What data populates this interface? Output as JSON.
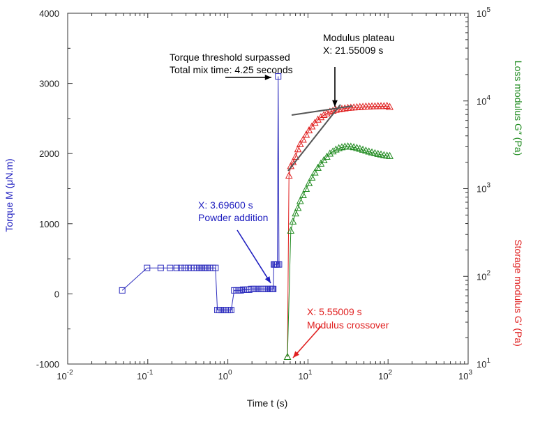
{
  "chart_data": {
    "type": "scatter",
    "x_scale": "log",
    "xlim": [
      0.01,
      1000
    ],
    "xlabel": "Time t (s)",
    "x_ticks": [
      {
        "base": "10",
        "exp": "-2",
        "value": 0.01
      },
      {
        "base": "10",
        "exp": "-1",
        "value": 0.1
      },
      {
        "base": "10",
        "exp": "0",
        "value": 1
      },
      {
        "base": "10",
        "exp": "1",
        "value": 10
      },
      {
        "base": "10",
        "exp": "2",
        "value": 100
      },
      {
        "base": "10",
        "exp": "3",
        "value": 1000
      }
    ],
    "y_left": {
      "label": "Torque M (μN.m)",
      "label_color": "#2020c0",
      "scale": "linear",
      "lim": [
        -1000,
        4000
      ],
      "ticks": [
        "-1000",
        "0",
        "1000",
        "2000",
        "3000",
        "4000"
      ]
    },
    "y_right": {
      "scale": "log",
      "lim": [
        10,
        100000
      ],
      "ticks": [
        {
          "base": "10",
          "exp": "1",
          "value": 10
        },
        {
          "base": "10",
          "exp": "2",
          "value": 100
        },
        {
          "base": "10",
          "exp": "3",
          "value": 1000
        },
        {
          "base": "10",
          "exp": "4",
          "value": 10000
        },
        {
          "base": "10",
          "exp": "5",
          "value": 100000
        }
      ],
      "label_loss": "Loss modulus G″ (Pa)",
      "label_storage": "Storage modulus G′ (Pa)"
    },
    "series": [
      {
        "key": "torque",
        "axis": "left",
        "color": "#2d2dbe",
        "marker": "square",
        "x": [
          0.048,
          0.098,
          0.145,
          0.19,
          0.23,
          0.26,
          0.29,
          0.32,
          0.35,
          0.38,
          0.41,
          0.44,
          0.47,
          0.5,
          0.53,
          0.56,
          0.6,
          0.65,
          0.7,
          0.74,
          0.78,
          0.82,
          0.86,
          0.9,
          0.95,
          1.0,
          1.05,
          1.1,
          1.2,
          1.28,
          1.36,
          1.45,
          1.55,
          1.65,
          1.75,
          1.85,
          1.95,
          2.05,
          2.15,
          2.3,
          2.45,
          2.6,
          2.75,
          2.9,
          3.05,
          3.2,
          3.35,
          3.5,
          3.6,
          3.69,
          3.75,
          3.85,
          3.95,
          4.05,
          4.15,
          4.25,
          4.35
        ],
        "y": [
          50,
          370,
          370,
          370,
          370,
          370,
          370,
          370,
          370,
          370,
          370,
          370,
          370,
          370,
          370,
          370,
          370,
          370,
          370,
          -230,
          -230,
          -230,
          -230,
          -230,
          -230,
          -230,
          -230,
          -230,
          50,
          50,
          50,
          50,
          60,
          60,
          60,
          60,
          70,
          70,
          70,
          70,
          70,
          70,
          70,
          70,
          70,
          70,
          70,
          70,
          70,
          70,
          420,
          420,
          420,
          420,
          420,
          3100,
          420
        ]
      },
      {
        "key": "storage_modulus",
        "axis": "right",
        "color": "#e02020",
        "marker": "triangle",
        "x": [
          5.55,
          5.8,
          6.1,
          6.5,
          7,
          7.5,
          8,
          8.7,
          9.5,
          10.3,
          11.2,
          12.2,
          13.3,
          14.5,
          15.8,
          17.2,
          18.8,
          20.5,
          22.3,
          24.3,
          26.5,
          28.9,
          31.5,
          34.3,
          37.4,
          40.8,
          44.5,
          48.5,
          52.9,
          57.7,
          62.9,
          68.6,
          74.8,
          81.6,
          89,
          97,
          105
        ],
        "y": [
          12,
          1400,
          1800,
          2000,
          2300,
          2800,
          3200,
          3600,
          4100,
          4600,
          5100,
          5600,
          6100,
          6500,
          6900,
          7200,
          7500,
          7700,
          7900,
          8000,
          8100,
          8200,
          8300,
          8350,
          8400,
          8450,
          8500,
          8550,
          8600,
          8600,
          8650,
          8650,
          8700,
          8700,
          8700,
          8750,
          8500
        ]
      },
      {
        "key": "loss_modulus",
        "axis": "right",
        "color": "#1e8a1e",
        "marker": "triangle",
        "x": [
          5.55,
          6.1,
          6.5,
          7,
          7.5,
          8,
          8.7,
          9.5,
          10.3,
          11.2,
          12.2,
          13.3,
          14.5,
          15.8,
          17.2,
          18.8,
          20.5,
          22.3,
          24.3,
          26.5,
          28.9,
          31.5,
          34.3,
          37.4,
          40.8,
          44.5,
          48.5,
          52.9,
          57.7,
          62.9,
          68.6,
          74.8,
          81.6,
          89,
          97,
          105
        ],
        "y": [
          12,
          330,
          420,
          520,
          600,
          720,
          840,
          990,
          1150,
          1330,
          1520,
          1720,
          1920,
          2100,
          2300,
          2500,
          2650,
          2780,
          2880,
          2950,
          3000,
          3020,
          3000,
          2960,
          2900,
          2840,
          2770,
          2700,
          2640,
          2580,
          2530,
          2480,
          2440,
          2400,
          2370,
          2350
        ]
      }
    ],
    "annotations": {
      "torque_threshold": {
        "line1": "Torque threshold surpassed",
        "line2": "Total mix time: 4.25 seconds",
        "color": "#000000"
      },
      "modulus_plateau": {
        "line1": "Modulus plateau",
        "line2": "X: 21.55009 s",
        "color": "#000000"
      },
      "powder_addition": {
        "line1": "X: 3.69600 s",
        "line2": "Powder addition",
        "color": "#2020c0"
      },
      "modulus_crossover": {
        "line1": "X: 5.55009 s",
        "line2": "Modulus crossover",
        "color": "#e02020"
      }
    }
  }
}
